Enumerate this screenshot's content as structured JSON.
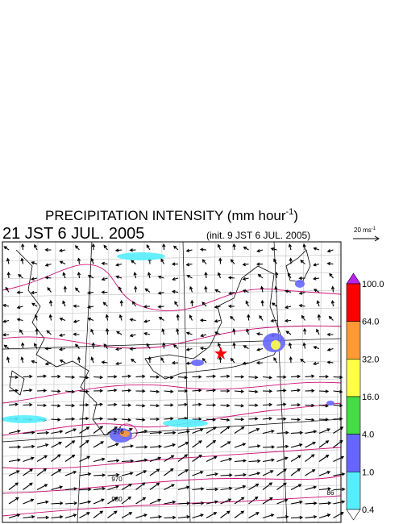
{
  "header": {
    "title": {
      "text": "PRECIPITATION INTENSITY (mm hour",
      "superscript": "-1",
      "closing": ")"
    },
    "valid_time": "21 JST 6 JUL. 2005",
    "init_time": "(init. 9 JST 6 JUL. 2005)",
    "reference_vector": {
      "text": "20 ms",
      "superscript": "-1"
    }
  },
  "colorbar": {
    "labels": [
      "100.0",
      "64.0",
      "32.0",
      "16.0",
      "4.0",
      "1.0",
      "0.4"
    ],
    "colors": [
      "#ff0000",
      "#ff9933",
      "#ffff44",
      "#44dd44",
      "#6666ff",
      "#55eeff"
    ],
    "over_color": "#bb22ee",
    "under_color": "#ffffff"
  },
  "map": {
    "contour_labels": [
      "976",
      "970",
      "980",
      "86"
    ]
  }
}
